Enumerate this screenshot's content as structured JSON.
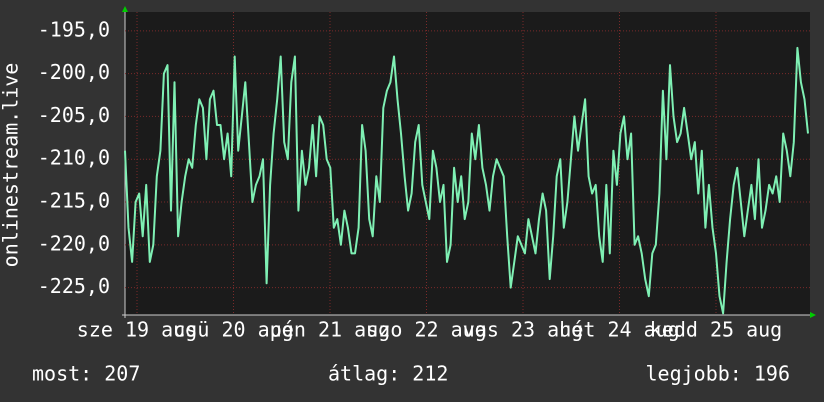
{
  "chart_data": {
    "type": "line",
    "y_label": "onlinestream.live",
    "x_labels": [
      "sze 19 aug",
      "csü 20 aug",
      "pén 21 aug",
      "szo 22 aug",
      "vas 23 aug",
      "hét 24 aug",
      "kedd 25 aug"
    ],
    "series": [
      {
        "color": "#7ff0b4",
        "values": [
          -209,
          -218,
          -222,
          -215,
          -214,
          -219,
          -213,
          -222,
          -220,
          -212,
          -209,
          -200,
          -199,
          -216,
          -201,
          -219,
          -215,
          -212,
          -210,
          -211,
          -206,
          -203,
          -204,
          -210,
          -203,
          -202,
          -206,
          -206,
          -210,
          -207,
          -212,
          -198,
          -209,
          -205,
          -201,
          -208,
          -215,
          -213,
          -212,
          -210,
          -224.5,
          -213,
          -207,
          -203,
          -198,
          -208,
          -210,
          -201,
          -198,
          -216,
          -209,
          -213,
          -211,
          -206,
          -212,
          -205,
          -206,
          -210,
          -211,
          -218,
          -217,
          -220,
          -216,
          -218,
          -221,
          -221,
          -218,
          -206,
          -209,
          -217,
          -219,
          -212,
          -215,
          -204,
          -202,
          -201,
          -198,
          -203,
          -207,
          -212,
          -216,
          -214,
          -208,
          -206,
          -213,
          -215,
          -217,
          -209,
          -211,
          -215,
          -213,
          -222,
          -220,
          -211,
          -215,
          -212,
          -217,
          -215,
          -207,
          -210,
          -206,
          -211,
          -213,
          -216,
          -212,
          -210,
          -211,
          -212,
          -219,
          -225,
          -222,
          -219,
          -220,
          -221,
          -217,
          -219,
          -221,
          -217,
          -214,
          -216,
          -224,
          -219,
          -212,
          -210,
          -218,
          -215,
          -210,
          -205,
          -209,
          -206,
          -203,
          -212,
          -214,
          -213,
          -219,
          -222,
          -213,
          -221,
          -209,
          -213,
          -207,
          -205,
          -210,
          -207,
          -220,
          -219,
          -221,
          -224,
          -226,
          -221,
          -220,
          -214,
          -202,
          -210,
          -199,
          -205,
          -208,
          -207,
          -204,
          -207,
          -210,
          -208,
          -214,
          -209,
          -218,
          -213,
          -218,
          -221,
          -226,
          -228,
          -222,
          -217,
          -213,
          -211,
          -215,
          -219,
          -216,
          -213,
          -217,
          -210,
          -218,
          -216,
          -213,
          -214,
          -212,
          -215,
          -207,
          -209,
          -212,
          -208,
          -197,
          -201,
          -203,
          -207
        ]
      }
    ],
    "ylim": [
      -228.2,
      -192.8
    ],
    "yticks": [
      {
        "value": -195,
        "label": "-195,0"
      },
      {
        "value": -200,
        "label": "-200,0"
      },
      {
        "value": -205,
        "label": "-205,0"
      },
      {
        "value": -210,
        "label": "-210,0"
      },
      {
        "value": -215,
        "label": "-215,0"
      },
      {
        "value": -220,
        "label": "-220,0"
      },
      {
        "value": -225,
        "label": "-225,0"
      }
    ],
    "grid": true,
    "footer": [
      "most: 207",
      "átlag: 212",
      "legjobb: 196"
    ]
  }
}
